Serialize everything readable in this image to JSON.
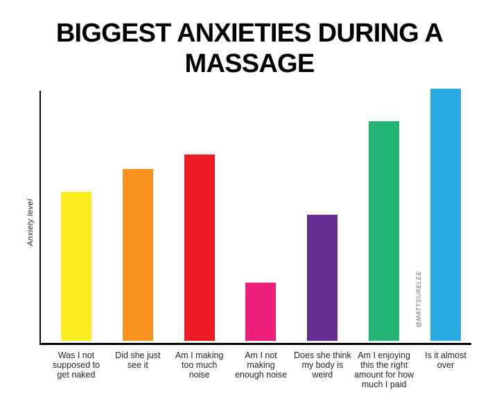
{
  "chart_data": {
    "type": "bar",
    "title": "BIGGEST ANXIETIES DURING A\nMASSAGE",
    "xlabel": "",
    "ylabel": "Anxiety level",
    "ylim": [
      0,
      100
    ],
    "grid": false,
    "legend": null,
    "annotation": "@MATTSURELEE",
    "categories": [
      "Was I not\nsupposed to\nget naked",
      "Did she just\nsee it",
      "Am I making\ntoo much\nnoise",
      "Am I not\nmaking\nenough noise",
      "Does she think\nmy body is\nweird",
      "Am I enjoying\nthis the right\namount for how\nmuch I paid",
      "Is it almost\nover"
    ],
    "values": [
      59,
      68,
      74,
      23,
      50,
      87,
      100
    ],
    "colors": [
      "#FCEE21",
      "#F7931E",
      "#ED1C24",
      "#EC1E79",
      "#662D91",
      "#22B573",
      "#29ABE2"
    ],
    "axis_color": "#000000",
    "title_color": "#000000"
  }
}
